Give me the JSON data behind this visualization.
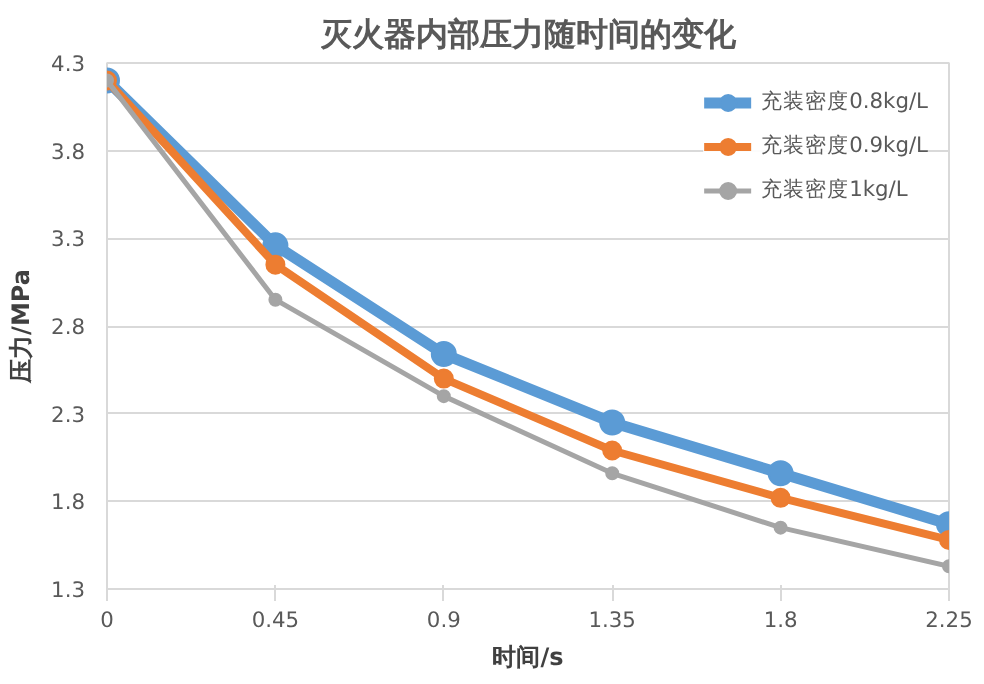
{
  "chart_data": {
    "type": "line",
    "title": "灭火器内部压力随时间的变化",
    "xlabel": "时间/s",
    "ylabel": "压力/MPa",
    "x": [
      0,
      0.45,
      0.9,
      1.35,
      1.8,
      2.25
    ],
    "series": [
      {
        "name": "充装密度0.8kg/L",
        "color": "#5b9bd5",
        "values": [
          4.2,
          3.26,
          2.64,
          2.25,
          1.96,
          1.67
        ]
      },
      {
        "name": "充装密度0.9kg/L",
        "color": "#ed7d31",
        "values": [
          4.2,
          3.15,
          2.5,
          2.09,
          1.82,
          1.58
        ]
      },
      {
        "name": "充装密度1kg/L",
        "color": "#a5a5a5",
        "values": [
          4.2,
          2.95,
          2.4,
          1.96,
          1.65,
          1.43
        ]
      }
    ],
    "xlim": [
      0,
      2.25
    ],
    "ylim": [
      1.3,
      4.3
    ],
    "xticks": [
      0,
      0.45,
      0.9,
      1.35,
      1.8,
      2.25
    ],
    "yticks": [
      1.3,
      1.8,
      2.3,
      2.8,
      3.3,
      3.8,
      4.3
    ],
    "grid": "y",
    "legend": "top right",
    "marker": "circle",
    "line_style": "solid"
  }
}
